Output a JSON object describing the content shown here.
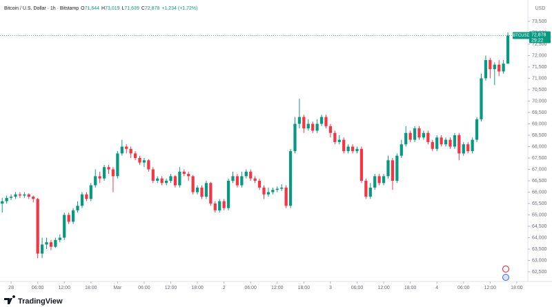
{
  "chart_data": {
    "type": "candlestick",
    "header": {
      "title": "Bitcoin / U.S. Dollar · 1h · Bitstamp",
      "ohlc": [
        {
          "label": "O",
          "value": "71,644"
        },
        {
          "label": "H",
          "value": "73,019"
        },
        {
          "label": "L",
          "value": "71,639"
        },
        {
          "label": "C",
          "value": "72,878"
        }
      ],
      "change": "+1,234 (+1.72%)"
    },
    "y_axis_label": "USD",
    "up_color": "#089981",
    "down_color": "#f23645",
    "open": [
      65500,
      65600,
      65750,
      65800,
      65900,
      65850,
      65900,
      65800,
      65700,
      63300,
      63700,
      63800,
      63600,
      63900,
      64000,
      65000,
      64700,
      65200,
      65400,
      65900,
      65700,
      66300,
      66700,
      66600,
      67100,
      67000,
      66700,
      67700,
      68000,
      67900,
      67700,
      67500,
      67300,
      67400,
      67000,
      66500,
      66600,
      66400,
      66500,
      66700,
      66300,
      66900,
      66800,
      66700,
      66000,
      66200,
      65800,
      66400,
      65500,
      65200,
      65600,
      65300,
      66500,
      66700,
      66300,
      66700,
      66900,
      66600,
      66500,
      66200,
      65900,
      66000,
      66100,
      66150,
      66200,
      65400,
      67800,
      69000,
      69300,
      68800,
      69000,
      68700,
      69000,
      69300,
      68900,
      68600,
      68200,
      68300,
      67800,
      68000,
      67800,
      67900,
      66500,
      65800,
      66200,
      66700,
      66400,
      66700,
      67400,
      66500,
      67600,
      68100,
      68600,
      68300,
      68800,
      68400,
      68600,
      68200,
      67900,
      68400,
      68100,
      68300,
      68000,
      68500,
      67700,
      68100,
      67800,
      68300,
      69200,
      71000,
      71800,
      71400,
      71600,
      71300,
      71644
    ],
    "high": [
      65750,
      65850,
      65900,
      66000,
      66000,
      66000,
      65950,
      65850,
      65750,
      64000,
      64000,
      63900,
      64000,
      64150,
      65100,
      65100,
      65300,
      65600,
      66000,
      66000,
      66400,
      67000,
      66900,
      67200,
      67200,
      67100,
      67800,
      68300,
      68100,
      68000,
      67800,
      67600,
      67500,
      67450,
      67100,
      66700,
      66700,
      66600,
      66800,
      66750,
      67100,
      67000,
      66900,
      66750,
      66300,
      66300,
      66500,
      66450,
      65600,
      65700,
      65700,
      66600,
      66900,
      66800,
      66900,
      67000,
      67000,
      66700,
      66600,
      66300,
      66200,
      66200,
      66250,
      66350,
      66300,
      67900,
      69300,
      70100,
      69400,
      69200,
      69100,
      69200,
      69400,
      69400,
      69000,
      68700,
      68500,
      68400,
      68100,
      68100,
      68000,
      68000,
      66600,
      66400,
      66800,
      66800,
      66800,
      67600,
      67500,
      67700,
      68300,
      68900,
      68700,
      68900,
      68900,
      68700,
      68700,
      68300,
      68500,
      68500,
      68400,
      68400,
      68600,
      68600,
      68200,
      68200,
      68400,
      69300,
      71200,
      72000,
      71900,
      71700,
      71800,
      71800,
      73019
    ],
    "low": [
      65100,
      65500,
      65650,
      65700,
      65750,
      65750,
      65700,
      65550,
      63100,
      63100,
      63500,
      63450,
      63550,
      63800,
      63900,
      64600,
      64600,
      65100,
      65300,
      65600,
      65600,
      66200,
      66400,
      66500,
      66800,
      66000,
      66600,
      67600,
      67700,
      67500,
      67400,
      67200,
      67100,
      66900,
      66400,
      66400,
      66300,
      66300,
      66400,
      66200,
      66200,
      66700,
      66500,
      65900,
      65900,
      65700,
      65700,
      65400,
      65100,
      65100,
      65200,
      65200,
      66400,
      66200,
      66200,
      66600,
      66500,
      66400,
      66100,
      65700,
      65800,
      65900,
      66000,
      66050,
      65300,
      65300,
      67700,
      68800,
      68600,
      68700,
      68600,
      68600,
      68900,
      68800,
      68400,
      68100,
      68100,
      67700,
      67700,
      67700,
      67700,
      66400,
      65700,
      65700,
      66100,
      66300,
      66300,
      66600,
      66100,
      66400,
      67500,
      68000,
      68200,
      68200,
      68300,
      68300,
      68100,
      67800,
      67800,
      68000,
      68000,
      67900,
      67900,
      67400,
      67600,
      67700,
      67700,
      68200,
      69100,
      70900,
      71000,
      70700,
      71100,
      71200,
      71639
    ],
    "close": [
      65600,
      65750,
      65800,
      65900,
      65850,
      65900,
      65800,
      65700,
      63300,
      63700,
      63800,
      63600,
      63900,
      64000,
      65000,
      64700,
      65200,
      65400,
      65900,
      65700,
      66300,
      66700,
      66600,
      67100,
      67000,
      66700,
      67700,
      68000,
      67900,
      67700,
      67500,
      67300,
      67400,
      67000,
      66500,
      66600,
      66400,
      66500,
      66700,
      66300,
      66900,
      66800,
      66700,
      66000,
      66200,
      65800,
      66400,
      65500,
      65200,
      65600,
      65300,
      66500,
      66700,
      66300,
      66700,
      66900,
      66600,
      66500,
      66200,
      65900,
      66000,
      66100,
      66150,
      66200,
      65400,
      67800,
      69000,
      69300,
      68800,
      69000,
      68700,
      69000,
      69300,
      68900,
      68600,
      68200,
      68300,
      67800,
      68000,
      67800,
      67900,
      66500,
      65800,
      66200,
      66700,
      66400,
      66700,
      67400,
      66500,
      67600,
      68100,
      68600,
      68300,
      68800,
      68400,
      68600,
      68200,
      67900,
      68400,
      68100,
      68300,
      68000,
      68500,
      67700,
      68100,
      67800,
      68300,
      69200,
      71000,
      71800,
      71400,
      71600,
      71300,
      71644,
      72878
    ],
    "xlim": [
      -0.5,
      118.5
    ],
    "xticks": [
      {
        "value": 2,
        "label": "28"
      },
      {
        "value": 8,
        "label": "06:00"
      },
      {
        "value": 14,
        "label": "12:00"
      },
      {
        "value": 20,
        "label": "18:00"
      },
      {
        "value": 26,
        "label": "Mar"
      },
      {
        "value": 32,
        "label": "06:00"
      },
      {
        "value": 38,
        "label": "12:00"
      },
      {
        "value": 44,
        "label": "18:00"
      },
      {
        "value": 50,
        "label": "2"
      },
      {
        "value": 56,
        "label": "06:00"
      },
      {
        "value": 62,
        "label": "12:00"
      },
      {
        "value": 68,
        "label": "18:00"
      },
      {
        "value": 74,
        "label": "3"
      },
      {
        "value": 80,
        "label": "06:00"
      },
      {
        "value": 86,
        "label": "12:00"
      },
      {
        "value": 92,
        "label": "18:00"
      },
      {
        "value": 98,
        "label": "4"
      },
      {
        "value": 104,
        "label": "06:00"
      },
      {
        "value": 110,
        "label": "12:00"
      },
      {
        "value": 116,
        "label": "18:00"
      }
    ],
    "ylim": [
      62167,
      73833
    ],
    "yticks": [
      {
        "value": 62500,
        "label": "62,500"
      },
      {
        "value": 63000,
        "label": "63,000"
      },
      {
        "value": 63500,
        "label": "63,500"
      },
      {
        "value": 64000,
        "label": "64,000"
      },
      {
        "value": 64500,
        "label": "64,500"
      },
      {
        "value": 65000,
        "label": "65,000"
      },
      {
        "value": 65500,
        "label": "65,500"
      },
      {
        "value": 66000,
        "label": "66,000"
      },
      {
        "value": 66500,
        "label": "66,500"
      },
      {
        "value": 67000,
        "label": "67,000"
      },
      {
        "value": 67500,
        "label": "67,500"
      },
      {
        "value": 68000,
        "label": "68,000"
      },
      {
        "value": 68500,
        "label": "68,500"
      },
      {
        "value": 69000,
        "label": "69,000"
      },
      {
        "value": 69500,
        "label": "69,500"
      },
      {
        "value": 70000,
        "label": "70,000"
      },
      {
        "value": 70500,
        "label": "70,500"
      },
      {
        "value": 71000,
        "label": "71,000"
      },
      {
        "value": 71500,
        "label": "71,500"
      },
      {
        "value": 72000,
        "label": "72,000"
      },
      {
        "value": 72500,
        "label": "72,500"
      },
      {
        "value": 73000,
        "label": "73,000"
      },
      {
        "value": 73500,
        "label": "73,500"
      }
    ],
    "price_label": {
      "symbol": "BTCUSD",
      "value": 72878,
      "value_label": "72,878",
      "countdown": "29:22"
    },
    "brand": "TradingView"
  }
}
